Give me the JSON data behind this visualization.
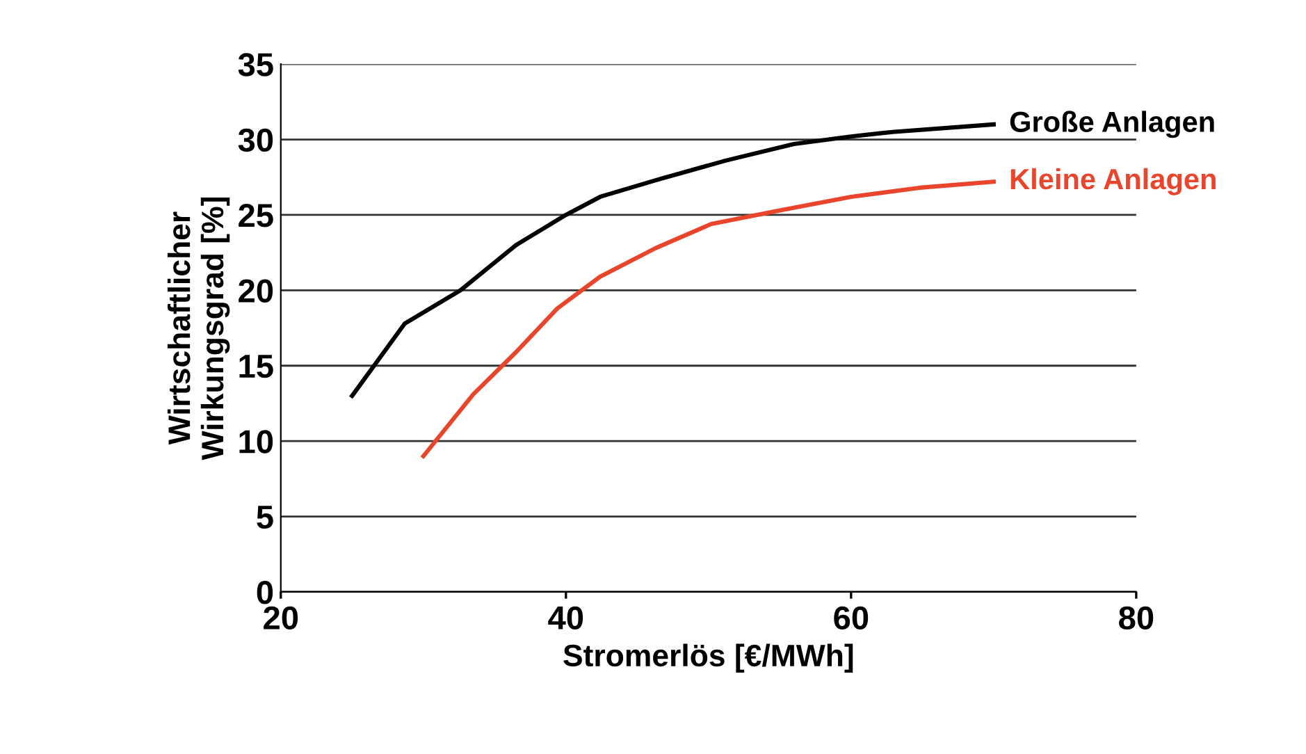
{
  "chart_data": {
    "type": "line",
    "xlabel": "Stromerlös [€/MWh]",
    "ylabel": "Wirtschaftlicher\nWirkungsgrad [%]",
    "xlim": [
      20,
      80
    ],
    "xticks": [
      20,
      40,
      60,
      80
    ],
    "ylim": [
      0,
      35
    ],
    "yticks": [
      0,
      5,
      10,
      15,
      20,
      25,
      30,
      35
    ],
    "grid": "y",
    "legend": false,
    "marker": "none",
    "line_style": "solid",
    "series": [
      {
        "name": "Große Anlagen",
        "color": "#000000",
        "x": [
          25,
          28.7,
          32.6,
          36.5,
          40,
          42.4,
          46.3,
          51.2,
          56,
          60,
          62.9,
          70
        ],
        "values": [
          13,
          17.8,
          20,
          23,
          25,
          26.2,
          27.3,
          28.6,
          29.7,
          30.2,
          30.5,
          31
        ]
      },
      {
        "name": "Kleine Anlagen",
        "color": "#e8452c",
        "x": [
          30,
          33.5,
          36.5,
          39.4,
          42.4,
          46.3,
          50.2,
          55,
          60,
          64.8,
          70
        ],
        "values": [
          9,
          13.1,
          15.9,
          18.8,
          20.9,
          22.8,
          24.4,
          25.3,
          26.2,
          26.8,
          27.2
        ]
      }
    ]
  }
}
